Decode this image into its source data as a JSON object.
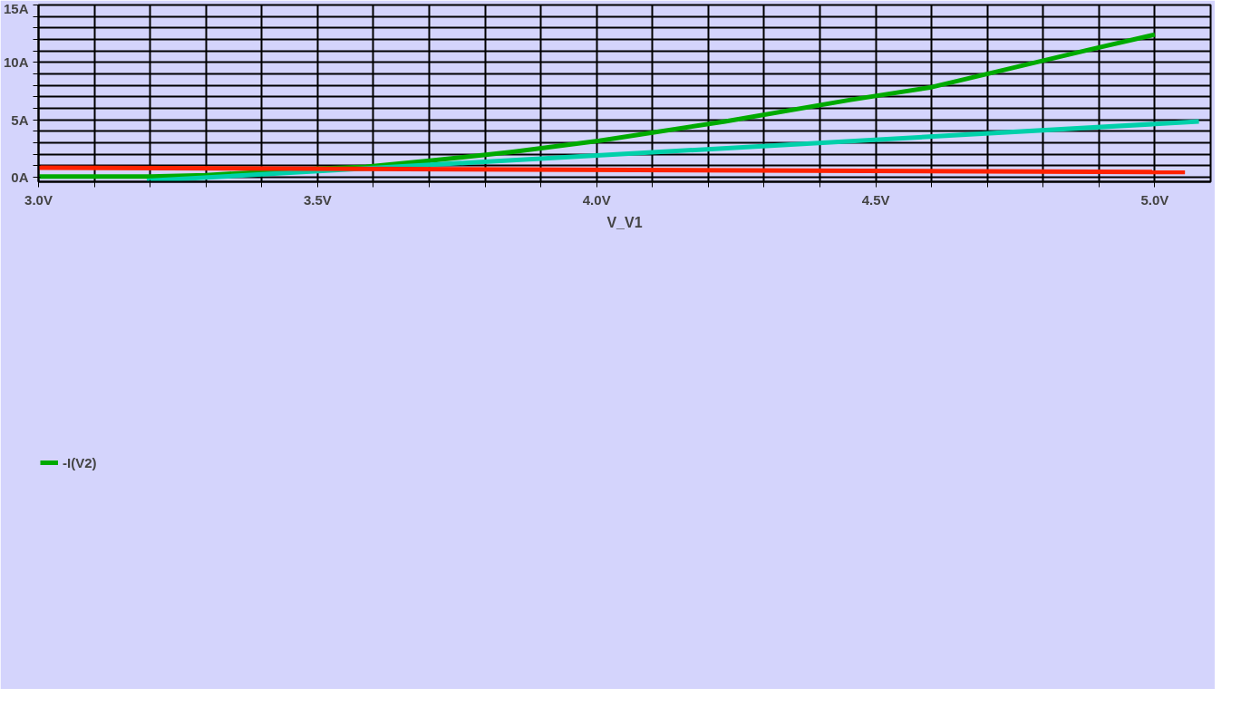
{
  "chart_data": {
    "type": "line",
    "xlabel": "V_V1",
    "series": [
      {
        "name": "-I(V2)",
        "color": "#00aa00",
        "x": [
          3.0,
          3.2,
          3.3,
          3.4,
          3.5,
          3.587,
          3.705,
          3.85,
          4.005,
          4.23,
          4.455,
          4.6,
          4.877,
          5.0
        ],
        "values": [
          0.05,
          0.05,
          0.18,
          0.45,
          0.75,
          0.9,
          1.45,
          2.2,
          3.17,
          4.85,
          6.74,
          7.84,
          11.04,
          12.42
        ]
      },
      {
        "color": "#00d0aa",
        "x": [
          3.194,
          5.079
        ],
        "values": [
          -0.32,
          4.85
        ]
      },
      {
        "color": "#ff2200",
        "x": [
          3.0,
          5.054
        ],
        "values": [
          0.83,
          0.44
        ]
      }
    ],
    "xlim": [
      3.0,
      5.1
    ],
    "ylim": [
      -0.4,
      15
    ],
    "xticks": [
      {
        "value": 3.0,
        "label": "3.0V"
      },
      {
        "value": 3.1,
        "label": null
      },
      {
        "value": 3.2,
        "label": null
      },
      {
        "value": 3.3,
        "label": null
      },
      {
        "value": 3.4,
        "label": null
      },
      {
        "value": 3.5,
        "label": "3.5V"
      },
      {
        "value": 3.6,
        "label": null
      },
      {
        "value": 3.7,
        "label": null
      },
      {
        "value": 3.8,
        "label": null
      },
      {
        "value": 3.9,
        "label": null
      },
      {
        "value": 4.0,
        "label": "4.0V"
      },
      {
        "value": 4.1,
        "label": null
      },
      {
        "value": 4.2,
        "label": null
      },
      {
        "value": 4.3,
        "label": null
      },
      {
        "value": 4.4,
        "label": null
      },
      {
        "value": 4.5,
        "label": "4.5V"
      },
      {
        "value": 4.6,
        "label": null
      },
      {
        "value": 4.7,
        "label": null
      },
      {
        "value": 4.8,
        "label": null
      },
      {
        "value": 4.9,
        "label": null
      },
      {
        "value": 5.0,
        "label": "5.0V"
      }
    ],
    "yticks": [
      {
        "value": 0,
        "label": "0A"
      },
      {
        "value": 1,
        "label": null
      },
      {
        "value": 2,
        "label": null
      },
      {
        "value": 3,
        "label": null
      },
      {
        "value": 4,
        "label": null
      },
      {
        "value": 5,
        "label": "5A"
      },
      {
        "value": 6,
        "label": null
      },
      {
        "value": 7,
        "label": null
      },
      {
        "value": 8,
        "label": null
      },
      {
        "value": 9,
        "label": null
      },
      {
        "value": 10,
        "label": "10A"
      },
      {
        "value": 11,
        "label": null
      },
      {
        "value": 12,
        "label": null
      },
      {
        "value": 13,
        "label": null
      },
      {
        "value": 14,
        "label": null
      },
      {
        "value": 15,
        "label": "15A"
      }
    ],
    "grid": true,
    "legend": "bottom left",
    "line_style": "solid"
  }
}
